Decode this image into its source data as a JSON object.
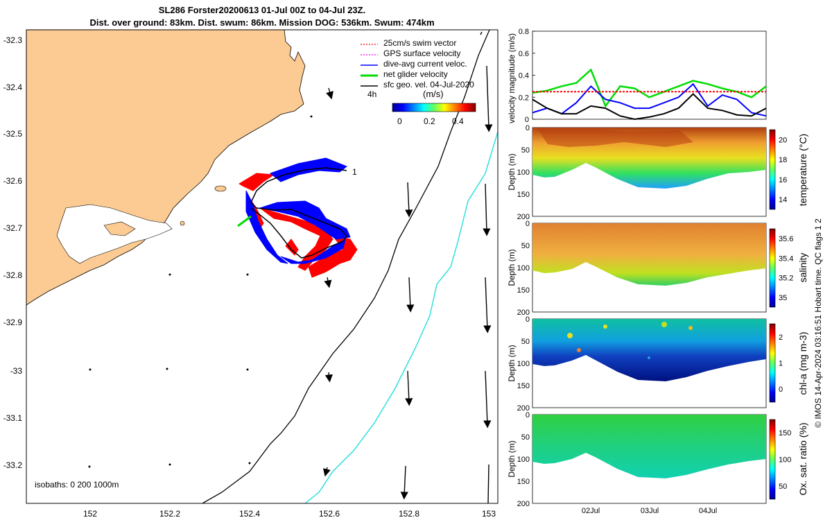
{
  "title": {
    "line1": "SL286 Forster20200613 01-Jul 00Z to 04-Jul 23Z.",
    "line2": "Dist. over ground: 83km. Dist. swum: 86km. Mission DOG: 536km. Swum: 474km"
  },
  "map": {
    "lat_ticks": [
      "-32.3",
      "-32.4",
      "-32.5",
      "-32.6",
      "-32.7",
      "-32.8",
      "-32.9",
      "-33",
      "-33.1",
      "-33.2"
    ],
    "lon_ticks": [
      "152",
      "152.2",
      "152.4",
      "152.6",
      "152.8",
      "153"
    ],
    "legend": [
      {
        "label": "25cm/s swim vector",
        "color": "#ff0000"
      },
      {
        "label": "GPS surface velocity",
        "color": "#ff00ff"
      },
      {
        "label": "dive-avg current veloc.",
        "color": "#0000ff"
      },
      {
        "label": "net glider velocity",
        "color": "#00dd00"
      },
      {
        "label": "sfc geo. vel. 04-Jul-2020",
        "color": "#000000"
      }
    ],
    "duration_label": "4h",
    "colorbar": {
      "title": "(m/s)",
      "ticks": [
        "0",
        "0.2",
        "0.4"
      ]
    },
    "track_end_label": "1",
    "isobaths_label": "isobaths: 0   200  1000m",
    "colors": {
      "land": "#fccb93",
      "isobath_200": "#000000",
      "isobath_1000": "#22dddd"
    }
  },
  "chart_data": [
    {
      "type": "line",
      "ylabel": "velocity magnitude (m/s)",
      "ylim": [
        0,
        0.8
      ],
      "yticks": [
        "0",
        "0.2",
        "0.4",
        "0.6",
        "0.8"
      ],
      "x": [
        0,
        0.25,
        0.5,
        0.75,
        1,
        1.25,
        1.5,
        1.75,
        2,
        2.25,
        2.5,
        2.75,
        3,
        3.25,
        3.5,
        3.75,
        4
      ],
      "series": [
        {
          "color": "#00dd00",
          "values": [
            0.24,
            0.26,
            0.3,
            0.33,
            0.45,
            0.12,
            0.3,
            0.28,
            0.2,
            0.25,
            0.3,
            0.35,
            0.32,
            0.28,
            0.25,
            0.2,
            0.3
          ]
        },
        {
          "color": "#0000ff",
          "values": [
            0.06,
            0.1,
            0.05,
            0.15,
            0.3,
            0.18,
            0.15,
            0.1,
            0.1,
            0.15,
            0.2,
            0.32,
            0.12,
            0.22,
            0.18,
            0.06,
            0.03
          ]
        },
        {
          "color": "#000000",
          "values": [
            0.18,
            0.1,
            0.05,
            0.05,
            0.12,
            0.1,
            0.03,
            0.0,
            0.02,
            0.05,
            0.1,
            0.23,
            0.1,
            0.08,
            0.04,
            0.03,
            0.1
          ]
        },
        {
          "color": "#ff0000",
          "values": [
            0.25,
            0.25,
            0.25,
            0.25,
            0.25,
            0.25,
            0.25,
            0.25,
            0.25,
            0.25,
            0.25,
            0.25,
            0.25,
            0.25,
            0.25,
            0.25,
            0.25
          ]
        }
      ]
    },
    {
      "type": "heatmap",
      "ylabel": "Depth (m)",
      "yticks": [
        "0",
        "50",
        "100",
        "150",
        "200"
      ],
      "cbar_label": "temperature (°C)",
      "cbar_ticks": [
        "14",
        "16",
        "18",
        "20"
      ]
    },
    {
      "type": "heatmap",
      "ylabel": "Depth (m)",
      "yticks": [
        "0",
        "50",
        "100",
        "150",
        "200"
      ],
      "cbar_label": "salinity",
      "cbar_ticks": [
        "35",
        "35.2",
        "35.4",
        "35.6"
      ]
    },
    {
      "type": "heatmap",
      "ylabel": "Depth (m)",
      "yticks": [
        "0",
        "50",
        "100",
        "150",
        "200"
      ],
      "cbar_label": "chl-a (mg m-3)",
      "cbar_ticks": [
        "0",
        "1",
        "2"
      ]
    },
    {
      "type": "heatmap",
      "ylabel": "Depth (m)",
      "yticks": [
        "0",
        "50",
        "100",
        "150",
        "200"
      ],
      "cbar_label": "Ox. sat. ratio (%)",
      "cbar_ticks": [
        "50",
        "100",
        "150"
      ],
      "xticks": [
        "02Jul",
        "03Jul",
        "04Jul"
      ]
    }
  ],
  "credit": "© IMOS 14-Apr-2024 03:16:51 Hobart time. QC flags 1  2"
}
